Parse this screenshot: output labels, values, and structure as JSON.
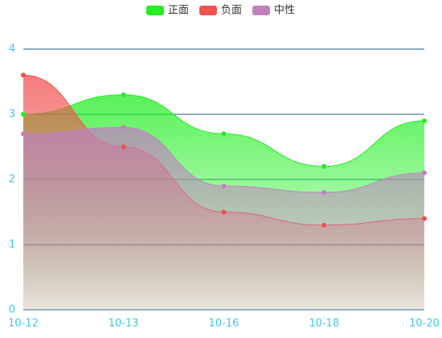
{
  "chart_data": {
    "type": "area",
    "categories": [
      "10-12",
      "10-13",
      "10-16",
      "10-18",
      "10-20"
    ],
    "series": [
      {
        "name": "正面",
        "color": "#22ee22",
        "values": [
          3.0,
          3.3,
          2.7,
          2.2,
          2.9
        ]
      },
      {
        "name": "负面",
        "color": "#f05050",
        "values": [
          3.6,
          2.5,
          1.5,
          1.3,
          1.4
        ]
      },
      {
        "name": "中性",
        "color": "#c080c0",
        "values": [
          2.7,
          2.8,
          1.9,
          1.8,
          2.1
        ]
      }
    ],
    "ylim": [
      0,
      4
    ],
    "yticks": [
      0,
      1,
      2,
      3,
      4
    ],
    "grid": true,
    "legend": "top"
  }
}
